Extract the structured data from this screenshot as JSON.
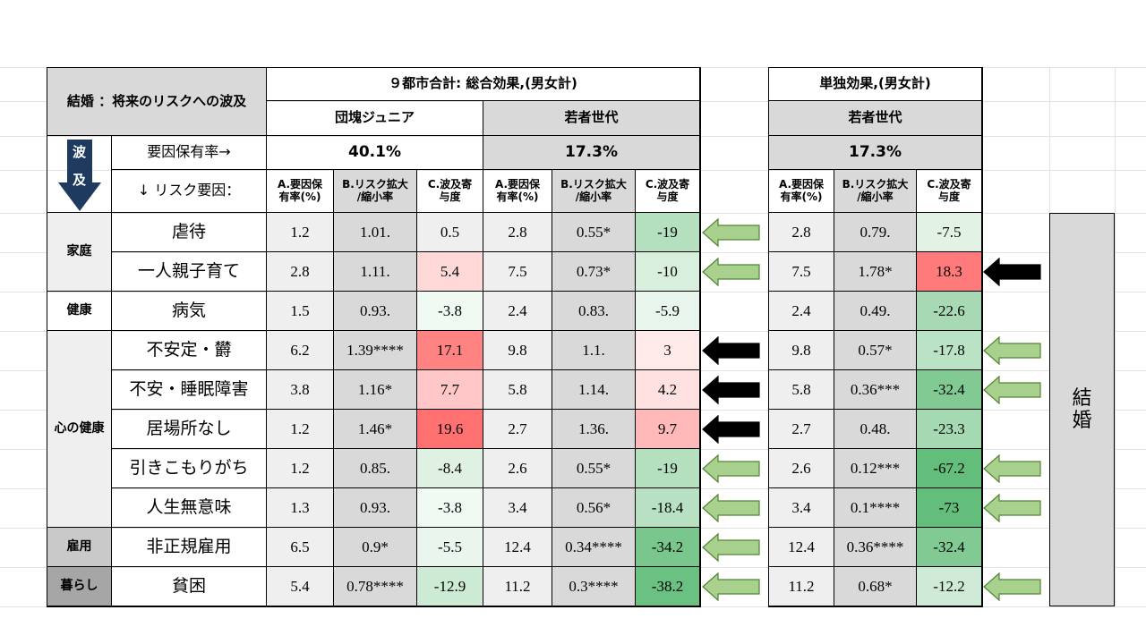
{
  "title": "結婚 ：将来のリスクへの波及",
  "header": {
    "total_title": "９都市合計: 総合効果,(男女計)",
    "solo_title": "単独効果,(男女計)",
    "group_junior": "団塊ジュニア",
    "group_young": "若者世代",
    "group_young_solo": "若者世代",
    "wave_chars": [
      "波",
      "及"
    ],
    "factor_rate_label": "要因保有率→",
    "risk_factor_label": "↓ リスク要因：",
    "rate_junior": "40.1%",
    "rate_young": "17.3%",
    "rate_young_solo": "17.3%",
    "col_a": [
      "A.要因保",
      "有率(%)"
    ],
    "col_b": [
      "B.リスク拡大",
      "/縮小率"
    ],
    "col_c": [
      "C.波及寄",
      "与度"
    ]
  },
  "side_label": "結\n婚",
  "categories": [
    {
      "label": "家庭"
    },
    {
      "label": "健康"
    },
    {
      "label": "心の健康"
    },
    {
      "label": "雇用"
    },
    {
      "label": "暮らし"
    }
  ],
  "rows": [
    {
      "risk": "虐待",
      "junior": [
        "1.2",
        "1.01.",
        "0.5"
      ],
      "young": [
        "2.8",
        "0.55*",
        "-19"
      ],
      "solo": [
        "2.8",
        "0.79.",
        "-7.5"
      ]
    },
    {
      "risk": "一人親子育て",
      "junior": [
        "2.8",
        "1.11.",
        "5.4"
      ],
      "young": [
        "7.5",
        "0.73*",
        "-10"
      ],
      "solo": [
        "7.5",
        "1.78*",
        "18.3"
      ]
    },
    {
      "risk": "病気",
      "junior": [
        "1.5",
        "0.93.",
        "-3.8"
      ],
      "young": [
        "2.4",
        "0.83.",
        "-5.9"
      ],
      "solo": [
        "2.4",
        "0.49.",
        "-22.6"
      ]
    },
    {
      "risk": "不安定・欝",
      "junior": [
        "6.2",
        "1.39****",
        "17.1"
      ],
      "young": [
        "9.8",
        "1.1.",
        "3"
      ],
      "solo": [
        "9.8",
        "0.57*",
        "-17.8"
      ]
    },
    {
      "risk": "不安・睡眠障害",
      "junior": [
        "3.8",
        "1.16*",
        "7.7"
      ],
      "young": [
        "5.8",
        "1.14.",
        "4.2"
      ],
      "solo": [
        "5.8",
        "0.36***",
        "-32.4"
      ]
    },
    {
      "risk": "居場所なし",
      "junior": [
        "1.2",
        "1.46*",
        "19.6"
      ],
      "young": [
        "2.7",
        "1.36.",
        "9.7"
      ],
      "solo": [
        "2.7",
        "0.48.",
        "-23.3"
      ]
    },
    {
      "risk": "引きこもりがち",
      "junior": [
        "1.2",
        "0.85.",
        "-8.4"
      ],
      "young": [
        "2.6",
        "0.55*",
        "-19"
      ],
      "solo": [
        "2.6",
        "0.12***",
        "-67.2"
      ]
    },
    {
      "risk": "人生無意味",
      "junior": [
        "1.3",
        "0.93.",
        "-3.8"
      ],
      "young": [
        "3.4",
        "0.56*",
        "-18.4"
      ],
      "solo": [
        "3.4",
        "0.1****",
        "-73"
      ]
    },
    {
      "risk": "非正規雇用",
      "junior": [
        "6.5",
        "0.9*",
        "-5.5"
      ],
      "young": [
        "12.4",
        "0.34****",
        "-34.2"
      ],
      "solo": [
        "12.4",
        "0.36****",
        "-32.4"
      ]
    },
    {
      "risk": "貧困",
      "junior": [
        "5.4",
        "0.78****",
        "-12.9"
      ],
      "young": [
        "11.2",
        "0.3****",
        "-38.2"
      ],
      "solo": [
        "11.2",
        "0.68*",
        "-12.2"
      ]
    }
  ],
  "colors": {
    "header_gray": "#d9d9d9",
    "light_gray": "#efefef",
    "green_arrow": "#a9d18e",
    "black_arrow": "#000000"
  },
  "arrows": {
    "young": [
      "green",
      "green",
      "",
      "black",
      "black",
      "black",
      "green",
      "green",
      "green",
      "green"
    ],
    "solo": [
      "",
      "black",
      "",
      "green",
      "green",
      "",
      "green",
      "green",
      "",
      "green"
    ]
  }
}
